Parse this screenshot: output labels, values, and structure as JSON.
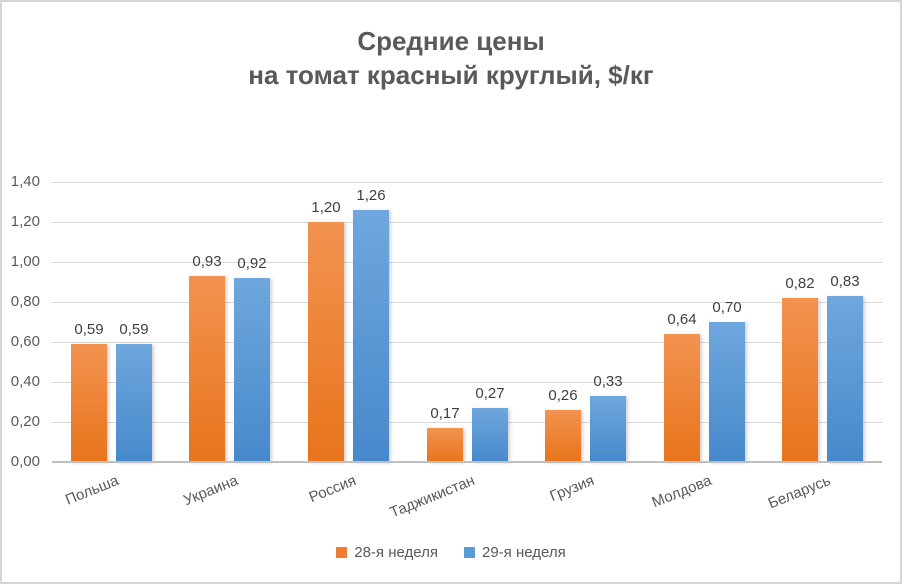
{
  "title": {
    "line1": "Средние цены",
    "line2": "на томат красный круглый, $/кг"
  },
  "chart_data": {
    "type": "bar",
    "title": "Средние цены на томат красный круглый, $/кг",
    "categories": [
      "Польша",
      "Украина",
      "Россия",
      "Таджикистан",
      "Грузия",
      "Молдова",
      "Беларусь"
    ],
    "series": [
      {
        "name": "28-я неделя",
        "color": "#ED7D31",
        "gradient": [
          "#F29350",
          "#E8741C"
        ],
        "values": [
          0.59,
          0.93,
          1.2,
          0.17,
          0.26,
          0.64,
          0.82
        ]
      },
      {
        "name": "29-я неделя",
        "color": "#5B9BD5",
        "gradient": [
          "#6FA7DE",
          "#4689CB"
        ],
        "values": [
          0.59,
          0.92,
          1.26,
          0.27,
          0.33,
          0.7,
          0.83
        ]
      }
    ],
    "xlabel": "",
    "ylabel": "",
    "ylim": [
      0,
      1.4
    ],
    "ytick_step": 0.2,
    "ytick_labels": [
      "0,00",
      "0,20",
      "0,40",
      "0,60",
      "0,80",
      "1,00",
      "1,20",
      "1,40"
    ],
    "decimal_separator": ",",
    "grid": true,
    "value_labels": true,
    "legend_position": "bottom",
    "colors": {
      "title_text": "#595959",
      "axis_text": "#595959",
      "value_label_text": "#3F3F3F",
      "gridline": "#D9D9D9",
      "axis_line": "#BFBFBF",
      "frame_border": "#D6D4D4",
      "background": "#FFFFFF"
    }
  }
}
